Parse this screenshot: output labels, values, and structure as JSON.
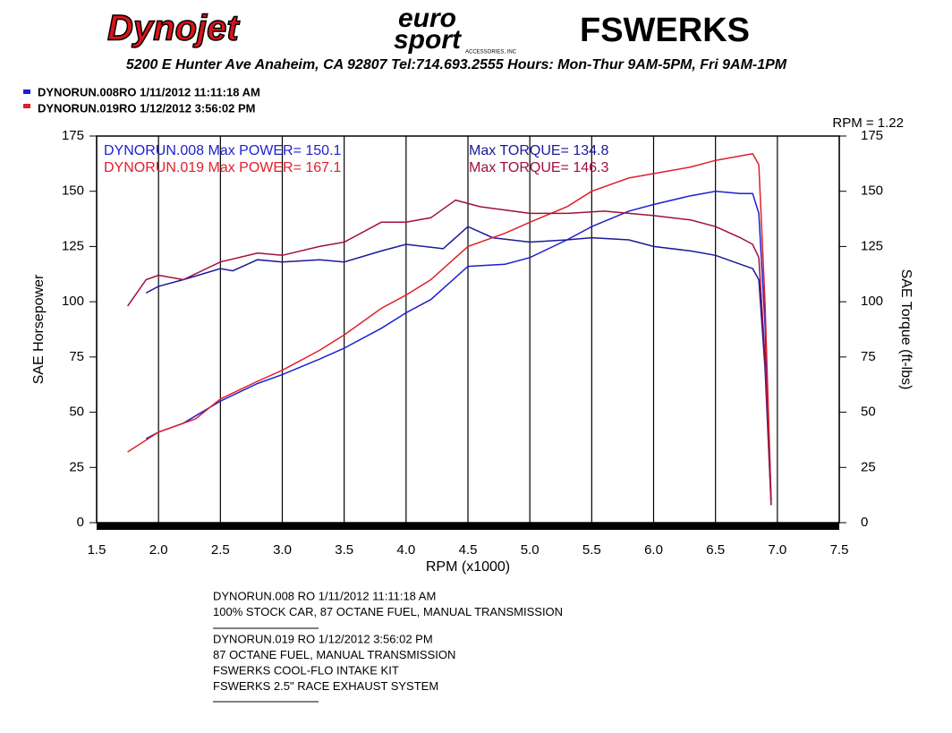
{
  "header": {
    "logo_dynojet": "Dynojet",
    "logo_euro": "euro",
    "logo_sport": "sport",
    "logo_accessories": "ACCESSORIES, INC",
    "logo_fswerks": "FSWERKS",
    "address": "5200 E Hunter Ave Anaheim, CA 92807  Tel:714.693.2555  Hours: Mon-Thur 9AM-5PM, Fri 9AM-1PM"
  },
  "runs": [
    "DYNORUN.008RO  1/11/2012 11:11:18 AM",
    "DYNORUN.019RO  1/12/2012 3:56:02 PM"
  ],
  "chart_data": {
    "type": "line",
    "rpm_note": "RPM = 1.22",
    "xlabel": "RPM (x1000)",
    "ylabel": "SAE Horsepower",
    "y2label": "SAE Torque (ft-lbs)",
    "xlim": [
      1.5,
      7.5
    ],
    "ylim": [
      0,
      175
    ],
    "y2lim": [
      0,
      175
    ],
    "xticks": [
      {
        "value": 1.5,
        "label": "1.5"
      },
      {
        "value": 2,
        "label": "2.0"
      },
      {
        "value": 2.5,
        "label": "2.5"
      },
      {
        "value": 3,
        "label": "3.0"
      },
      {
        "value": 3.5,
        "label": "3.5"
      },
      {
        "value": 4,
        "label": "4.0"
      },
      {
        "value": 4.5,
        "label": "4.5"
      },
      {
        "value": 5,
        "label": "5.0"
      },
      {
        "value": 5.5,
        "label": "5.5"
      },
      {
        "value": 6,
        "label": "6.0"
      },
      {
        "value": 6.5,
        "label": "6.5"
      },
      {
        "value": 7,
        "label": "7.0"
      },
      {
        "value": 7.5,
        "label": "7.5"
      }
    ],
    "yticks": [
      0,
      25,
      50,
      75,
      100,
      125,
      150,
      175
    ],
    "y2ticks": [
      0,
      25,
      50,
      75,
      100,
      125,
      150,
      175
    ],
    "grid": true,
    "annotations": [
      {
        "text": "DYNORUN.008  Max POWER= 150.1",
        "color": "#1f1fd0"
      },
      {
        "text": "Max TORQUE= 134.8",
        "color": "#1a1a9a"
      },
      {
        "text": "DYNORUN.019  Max POWER= 167.1",
        "color": "#e0202a"
      },
      {
        "text": "Max TORQUE= 146.3",
        "color": "#a0103a"
      }
    ],
    "series": [
      {
        "name": "DYNORUN.008 Power",
        "color": "#1f1fd0",
        "x": [
          1.9,
          2.0,
          2.2,
          2.5,
          2.8,
          3.0,
          3.3,
          3.5,
          3.8,
          4.0,
          4.2,
          4.5,
          4.8,
          5.0,
          5.3,
          5.5,
          5.8,
          6.0,
          6.3,
          6.5,
          6.7,
          6.8,
          6.85,
          6.9,
          6.95
        ],
        "values": [
          38,
          41,
          45,
          55,
          63,
          67,
          74,
          79,
          88,
          95,
          101,
          116,
          117,
          120,
          128,
          134,
          141,
          144,
          148,
          150,
          149,
          149,
          140,
          90,
          10
        ]
      },
      {
        "name": "DYNORUN.008 Torque",
        "color": "#1a1a9a",
        "axis": "y2",
        "x": [
          1.9,
          2.0,
          2.2,
          2.5,
          2.6,
          2.8,
          3.0,
          3.3,
          3.5,
          3.8,
          4.0,
          4.3,
          4.5,
          4.7,
          5.0,
          5.3,
          5.5,
          5.8,
          6.0,
          6.3,
          6.5,
          6.7,
          6.8,
          6.85,
          6.9,
          6.95
        ],
        "values": [
          104,
          107,
          110,
          115,
          114,
          119,
          118,
          119,
          118,
          123,
          126,
          124,
          134,
          129,
          127,
          128,
          129,
          128,
          125,
          123,
          121,
          117,
          115,
          110,
          70,
          8
        ]
      },
      {
        "name": "DYNORUN.019 Power",
        "color": "#e0202a",
        "x": [
          1.75,
          2.0,
          2.3,
          2.5,
          2.8,
          3.0,
          3.3,
          3.5,
          3.8,
          4.0,
          4.2,
          4.5,
          4.8,
          5.0,
          5.3,
          5.5,
          5.8,
          6.0,
          6.3,
          6.5,
          6.7,
          6.8,
          6.85,
          6.9,
          6.95
        ],
        "values": [
          32,
          41,
          47,
          56,
          64,
          69,
          78,
          85,
          97,
          103,
          110,
          125,
          131,
          136,
          143,
          150,
          156,
          158,
          161,
          164,
          166,
          167,
          162,
          100,
          10
        ]
      },
      {
        "name": "DYNORUN.019 Torque",
        "color": "#a0103a",
        "axis": "y2",
        "x": [
          1.75,
          1.9,
          2.0,
          2.2,
          2.5,
          2.8,
          3.0,
          3.3,
          3.5,
          3.8,
          4.0,
          4.2,
          4.4,
          4.6,
          5.0,
          5.3,
          5.6,
          6.0,
          6.3,
          6.5,
          6.7,
          6.8,
          6.85,
          6.9,
          6.95
        ],
        "values": [
          98,
          110,
          112,
          110,
          118,
          122,
          121,
          125,
          127,
          136,
          136,
          138,
          146,
          143,
          140,
          140,
          141,
          139,
          137,
          134,
          129,
          126,
          120,
          75,
          8
        ]
      }
    ]
  },
  "notes": [
    {
      "lines": [
        "DYNORUN.008      RO    1/11/2012 11:11:18 AM",
        "100% STOCK CAR, 87 OCTANE FUEL, MANUAL TRANSMISSION"
      ]
    },
    {
      "lines": [
        "DYNORUN.019      RO    1/12/2012 3:56:02 PM",
        "87 OCTANE FUEL, MANUAL TRANSMISSION",
        "FSWERKS COOL-FLO INTAKE KIT",
        "FSWERKS 2.5\" RACE EXHAUST SYSTEM"
      ]
    }
  ]
}
